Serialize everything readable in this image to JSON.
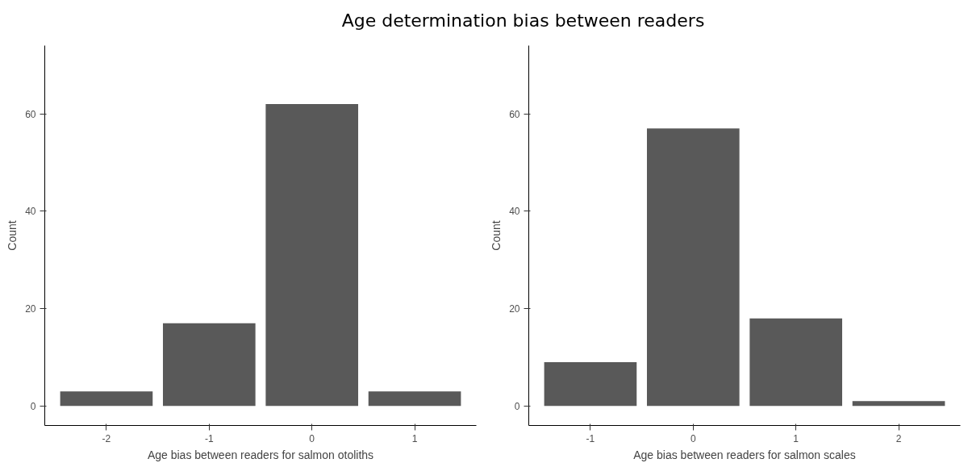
{
  "chart_data": [
    {
      "type": "bar",
      "title": "Age determination bias between readers",
      "xlabel": "Age bias between readers for salmon otoliths",
      "ylabel": "Count",
      "x": [
        -2,
        -1,
        0,
        1
      ],
      "values": [
        3,
        17,
        62,
        3
      ],
      "color": "#595959",
      "xlim": [
        -2.6,
        1.6
      ],
      "xticks": [
        -2,
        -1,
        0,
        1
      ],
      "ylim": [
        -4,
        74
      ],
      "yticks": [
        0,
        20,
        40,
        60
      ],
      "grid": false
    },
    {
      "type": "bar",
      "xlabel": "Age bias between readers for salmon scales",
      "ylabel": "Count",
      "x": [
        -1,
        0,
        1,
        2
      ],
      "values": [
        9,
        57,
        18,
        1
      ],
      "color": "#595959",
      "xlim": [
        -1.6,
        2.6
      ],
      "xticks": [
        -1,
        0,
        1,
        2
      ],
      "ylim": [
        -4,
        74
      ],
      "yticks": [
        0,
        20,
        40,
        60
      ],
      "grid": false
    }
  ]
}
